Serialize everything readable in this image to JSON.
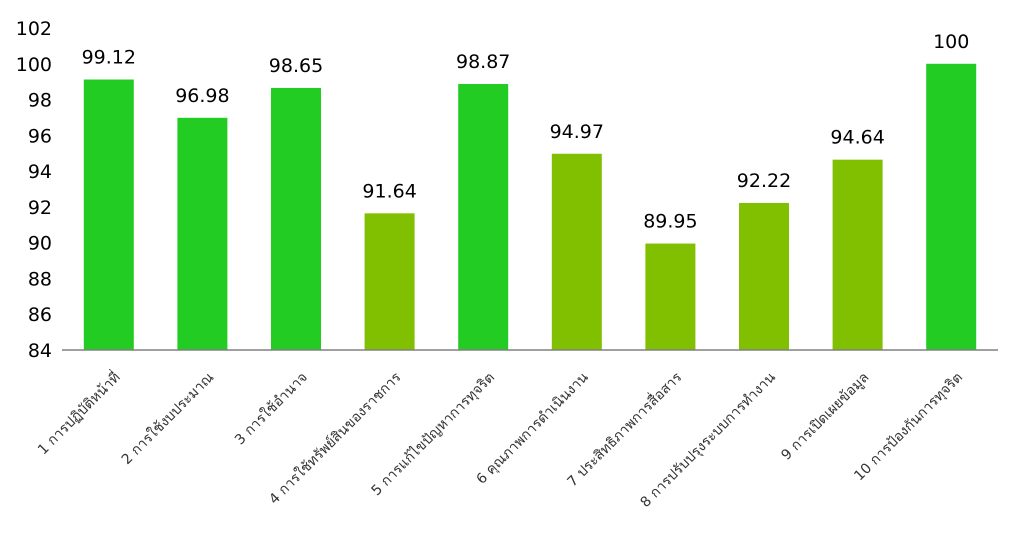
{
  "chart_data": {
    "type": "bar",
    "title": "",
    "xlabel": "",
    "ylabel": "",
    "ylim": [
      84,
      102
    ],
    "yticks": [
      84,
      86,
      88,
      90,
      92,
      94,
      96,
      98,
      100,
      102
    ],
    "grid": false,
    "legend": "none",
    "categories": [
      "1 การปฏิบัติหน้าที่",
      "2 การใช้งบประมาณ",
      "3 การใช้อำนาจ",
      "4 การใช้ทรัพย์สินของราชการ",
      "5 การแก้ไขปัญหาการทุจริต",
      "6 คุณภาพการดำเนินงาน",
      "7 ประสิทธิภาพการสื่อสาร",
      "8 การปรับปรุงระบบการทำงาน",
      "9 การเปิดเผยข้อมูล",
      "10 การป้องกันการทุจริต"
    ],
    "values": [
      99.12,
      96.98,
      98.65,
      91.64,
      98.87,
      94.97,
      89.95,
      92.22,
      94.64,
      100
    ],
    "value_labels": [
      "99.12",
      "96.98",
      "98.65",
      "91.64",
      "98.87",
      "94.97",
      "89.95",
      "92.22",
      "94.64",
      "100"
    ],
    "bar_colors": [
      "#22cc22",
      "#22cc22",
      "#22cc22",
      "#80c000",
      "#22cc22",
      "#80c000",
      "#80c000",
      "#80c000",
      "#80c000",
      "#22cc22"
    ],
    "axis_color": "#808080"
  }
}
